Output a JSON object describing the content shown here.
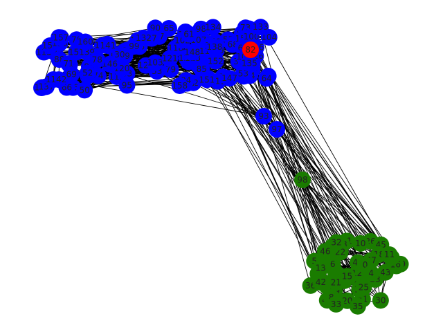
{
  "graph": {
    "colors": {
      "blue": "#0000ff",
      "red": "#ff0000",
      "green": "#1a7c00"
    },
    "clusters": [
      {
        "color": "blue",
        "labels": [
          "65",
          "75",
          "92",
          "91",
          "131",
          "136",
          "112",
          "127",
          "93",
          "97",
          "11",
          "55",
          "63",
          "98",
          "58",
          "86",
          "51",
          "15",
          "129",
          "54",
          "101",
          "68",
          "159",
          "96",
          "126",
          "140",
          "128",
          "149",
          "150",
          "105",
          "114",
          "72",
          "77",
          "99",
          "89",
          "68",
          "83",
          "46",
          "37",
          "122",
          "33",
          "116",
          "110",
          "118",
          "130",
          "80",
          "82",
          "88",
          "70",
          "104",
          "155",
          "125",
          "56",
          "60",
          "57",
          "76",
          "115",
          "143",
          "102",
          "144",
          "107",
          "154",
          "95",
          "71",
          "124",
          "113",
          "137",
          "50",
          "79",
          "106",
          "84",
          "119",
          "85",
          "90",
          "66",
          "69",
          "73",
          "53",
          "81",
          "109",
          "74",
          "67",
          "59",
          "108",
          "120",
          "62",
          "117",
          "139",
          "64",
          "94",
          "100",
          "61",
          "103",
          "111",
          "87",
          "132",
          "123",
          "121",
          "138",
          "134",
          "146",
          "145",
          "141",
          "148",
          "142",
          "147",
          "135",
          "133",
          "152",
          "151",
          "153",
          "156",
          "157",
          "158",
          "160",
          "52",
          "78"
        ]
      },
      {
        "color": "red",
        "labels": [
          "82"
        ]
      },
      {
        "color": "green",
        "labels": [
          "98",
          "43",
          "24",
          "49",
          "23",
          "26",
          "30",
          "2",
          "41",
          "44",
          "20",
          "3",
          "1",
          "17",
          "12",
          "34",
          "35",
          "10",
          "36",
          "27",
          "9",
          "19",
          "7",
          "5",
          "28",
          "31",
          "45",
          "42",
          "29",
          "39",
          "48",
          "38",
          "16",
          "14",
          "40",
          "37",
          "46",
          "13",
          "18",
          "47",
          "22",
          "21",
          "6",
          "11",
          "8",
          "0",
          "33",
          "4",
          "15",
          "32",
          "25"
        ]
      }
    ]
  }
}
